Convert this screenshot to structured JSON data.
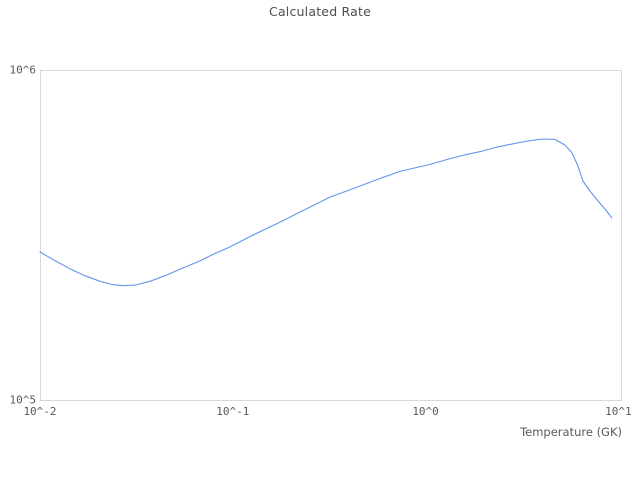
{
  "chart": {
    "title": "Calculated Rate",
    "xlabel": "Temperature (GK)"
  },
  "colors": {
    "line": "#6495ed",
    "plot_border": "#d9d9d9",
    "title_text": "#4d4d4d",
    "tick_text": "#595959",
    "background": "#ffffff"
  },
  "chart_data": {
    "type": "line",
    "title": "Calculated Rate",
    "xlabel": "Temperature (GK)",
    "ylabel": "",
    "x_scale": "log",
    "y_scale": "log",
    "x_range": [
      0.01,
      10.32
    ],
    "y_range": [
      100000,
      1000000
    ],
    "grid": false,
    "legend": false,
    "x_ticks": {
      "values": [
        0.01,
        0.1,
        1,
        10
      ],
      "labels": [
        "10^-2",
        "10^-1",
        "10^0",
        "10^1"
      ]
    },
    "y_ticks": {
      "values": [
        100000,
        1000000
      ],
      "labels": [
        "10^5",
        "10^6"
      ]
    },
    "series": [
      {
        "name": "Calculated Rate",
        "x": [
          0.01,
          0.012,
          0.0143,
          0.0171,
          0.0205,
          0.0236,
          0.0269,
          0.0311,
          0.0372,
          0.0445,
          0.0532,
          0.0676,
          0.0808,
          0.0967,
          0.123,
          0.147,
          0.176,
          0.223,
          0.267,
          0.319,
          0.382,
          0.457,
          0.58,
          0.737,
          0.881,
          1.05,
          1.34,
          1.6,
          1.92,
          2.29,
          2.74,
          3.28,
          3.78,
          4.16,
          4.69,
          5.29,
          5.75,
          6.17,
          6.55,
          7.12,
          7.84,
          8.52,
          9.26
        ],
        "y": [
          281000,
          264000,
          250000,
          238000,
          229000,
          224000,
          222000,
          223000,
          229000,
          238000,
          249000,
          264000,
          278000,
          291000,
          313000,
          329000,
          346000,
          371000,
          391000,
          412000,
          428000,
          445000,
          469000,
          493000,
          505000,
          517000,
          539000,
          553000,
          566000,
          582000,
          595000,
          607000,
          615000,
          618000,
          616000,
          592000,
          561000,
          512000,
          461000,
          430000,
          401000,
          379000,
          356000
        ]
      }
    ]
  }
}
